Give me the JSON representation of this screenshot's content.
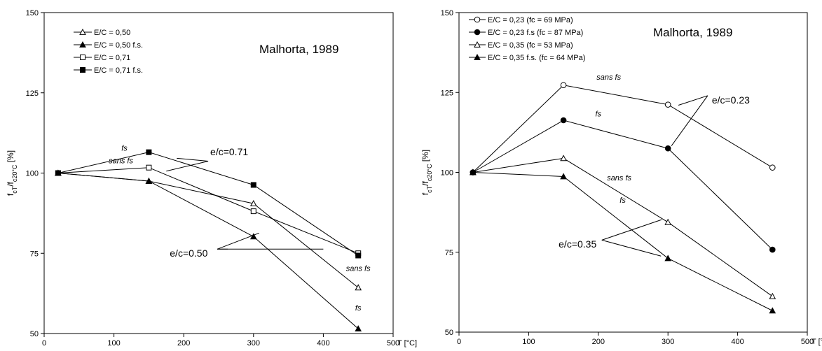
{
  "chart_data": [
    {
      "type": "line",
      "xlabel": "T [°C]",
      "ylabel": "fcT/fc20°C [%]",
      "xlim": [
        0,
        500
      ],
      "ylim": [
        50,
        150
      ],
      "xticks": [
        0,
        100,
        200,
        300,
        400,
        500
      ],
      "yticks": [
        50,
        75,
        100,
        125,
        150
      ],
      "grid": false,
      "legend_position": "top-left",
      "source_label": "Malhorta, 1989",
      "series": [
        {
          "name": "E/C = 0,50",
          "marker": "triangle-open",
          "x": [
            20,
            150,
            300,
            450
          ],
          "values": [
            100,
            97.5,
            90.5,
            64.3
          ]
        },
        {
          "name": "E/C = 0,50  f.s.",
          "marker": "triangle-filled",
          "x": [
            20,
            150,
            300,
            450
          ],
          "values": [
            100,
            97.5,
            80.2,
            51.5
          ]
        },
        {
          "name": "E/C = 0,71",
          "marker": "square-open",
          "x": [
            20,
            150,
            300,
            450
          ],
          "values": [
            100,
            101.7,
            88.1,
            75.0
          ]
        },
        {
          "name": "E/C = 0,71  f.s.",
          "marker": "square-filled",
          "x": [
            20,
            150,
            300,
            450
          ],
          "values": [
            100,
            106.5,
            96.3,
            74.3
          ]
        }
      ],
      "annotations": [
        {
          "text": "fs",
          "style": "italic",
          "at": [
            115,
            107
          ]
        },
        {
          "text": "sans fs",
          "style": "italic",
          "at": [
            110,
            103
          ]
        },
        {
          "text": "sans fs",
          "style": "italic",
          "at": [
            450,
            69.5
          ]
        },
        {
          "text": "fs",
          "style": "italic",
          "at": [
            450,
            57.2
          ]
        }
      ],
      "callouts": [
        {
          "text": "e/c=0.71",
          "at": [
            238,
            105.6
          ],
          "pointers": [
            [
              190,
              104.6
            ],
            [
              175,
              100.6
            ]
          ],
          "junction": [
            235,
            103.7
          ]
        },
        {
          "text": "e/c=0.50",
          "at": [
            180,
            74.0
          ],
          "pointers": [
            [
              308,
              81.3
            ],
            [
              263,
              76.3
            ]
          ],
          "line_to": [
            400,
            76.3
          ]
        }
      ]
    },
    {
      "type": "line",
      "xlabel": "T [°C]",
      "ylabel": "fcT/fc20°C [%]",
      "xlim": [
        0,
        500
      ],
      "ylim": [
        50,
        150
      ],
      "xticks": [
        0,
        100,
        200,
        300,
        400,
        500
      ],
      "yticks": [
        50,
        75,
        100,
        125,
        150
      ],
      "grid": false,
      "legend_position": "top-left",
      "source_label": "Malhorta, 1989",
      "series": [
        {
          "name": "E/C = 0,23 (fc = 69 MPa)",
          "marker": "circle-open",
          "x": [
            20,
            150,
            300,
            450
          ],
          "values": [
            100,
            127.3,
            121.2,
            101.5
          ]
        },
        {
          "name": "E/C = 0,23  f.s (fc = 87 MPa)",
          "marker": "circle-filled",
          "x": [
            20,
            150,
            300,
            450
          ],
          "values": [
            100,
            116.3,
            107.5,
            75.8
          ]
        },
        {
          "name": "E/C = 0,35 (fc = 53 MPa)",
          "marker": "triangle-open",
          "x": [
            20,
            150,
            300,
            450
          ],
          "values": [
            100,
            104.4,
            84.4,
            61.2
          ]
        },
        {
          "name": "E/C = 0,35  f.s. (fc = 64 MPa)",
          "marker": "triangle-filled",
          "x": [
            20,
            150,
            300,
            450
          ],
          "values": [
            100,
            98.7,
            73.1,
            56.7
          ]
        }
      ],
      "annotations": [
        {
          "text": "sans fs",
          "style": "italic",
          "at": [
            215,
            129
          ]
        },
        {
          "text": "fs",
          "style": "italic",
          "at": [
            200,
            117.5
          ]
        },
        {
          "text": "sans fs",
          "style": "italic",
          "at": [
            230,
            97.5
          ]
        },
        {
          "text": "fs",
          "style": "italic",
          "at": [
            235,
            90.5
          ]
        }
      ],
      "callouts": [
        {
          "text": "e/c=0.23",
          "at": [
            363,
            121.5
          ],
          "pointers": [
            [
              315,
              121.0
            ],
            [
              305,
              108.3
            ]
          ],
          "junction": [
            357,
            124.0
          ]
        },
        {
          "text": "e/c=0.35",
          "at": [
            143,
            76.5
          ],
          "pointers": [
            [
              291,
              85.2
            ],
            [
              290,
              73.8
            ]
          ],
          "junction": [
            205,
            78.8
          ]
        }
      ]
    }
  ]
}
